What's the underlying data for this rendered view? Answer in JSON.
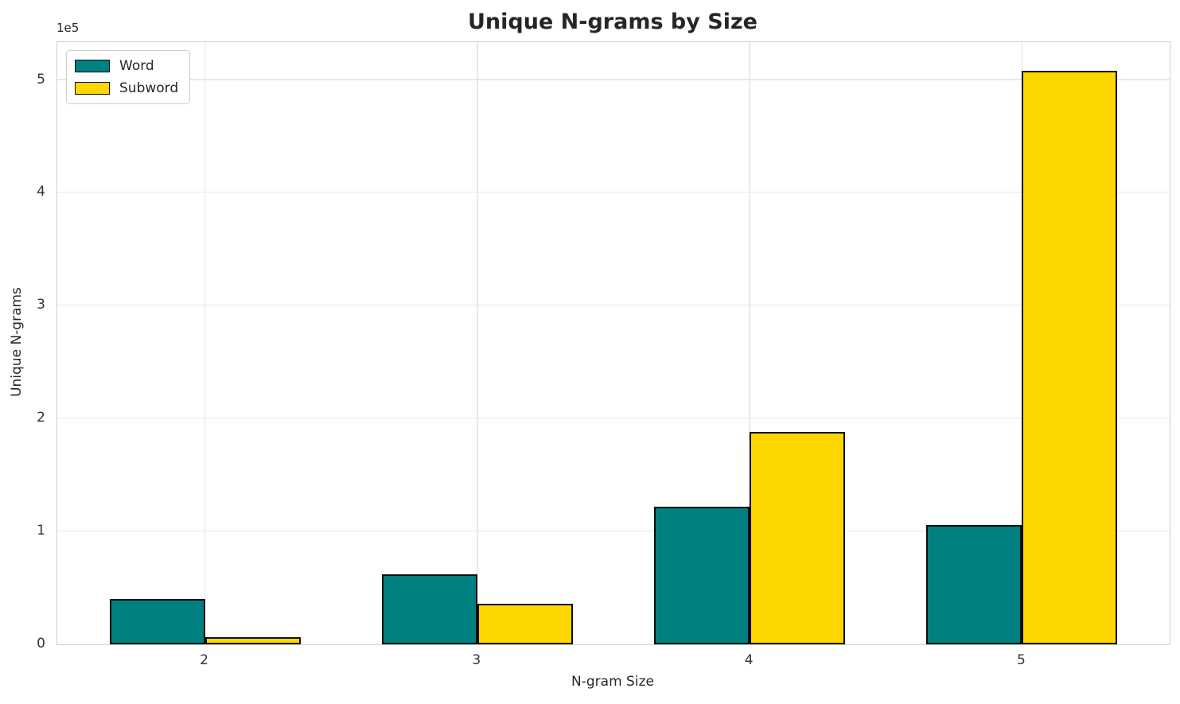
{
  "figure": {
    "title": "Unique N-grams by Size",
    "xlabel": "N-gram Size",
    "ylabel": "Unique N-grams",
    "offset_text": "1e5"
  },
  "legend": {
    "items": [
      {
        "label": "Word",
        "color": "#008080"
      },
      {
        "label": "Subword",
        "color": "#FFD700"
      }
    ]
  },
  "chart_data": {
    "type": "bar",
    "title": "Unique N-grams by Size",
    "xlabel": "N-gram Size",
    "ylabel": "Unique N-grams",
    "categories": [
      "2",
      "3",
      "4",
      "5"
    ],
    "series": [
      {
        "name": "Word",
        "color": "#008080",
        "values": [
          40000,
          62000,
          122000,
          106000
        ]
      },
      {
        "name": "Subword",
        "color": "#FFD700",
        "values": [
          6000,
          36000,
          188000,
          508000
        ]
      }
    ],
    "ylim": [
      0,
      533500
    ],
    "yticks": [
      {
        "value": 0,
        "label": "0"
      },
      {
        "value": 100000,
        "label": "1"
      },
      {
        "value": 200000,
        "label": "2"
      },
      {
        "value": 300000,
        "label": "3"
      },
      {
        "value": 400000,
        "label": "4"
      },
      {
        "value": 500000,
        "label": "5"
      }
    ],
    "y_offset_label": "1e5",
    "grid": true,
    "legend_position": "upper left",
    "bar_edge_color": "#000000",
    "background_color": "#ffffff",
    "gridline_color": "#e8e8e8"
  }
}
